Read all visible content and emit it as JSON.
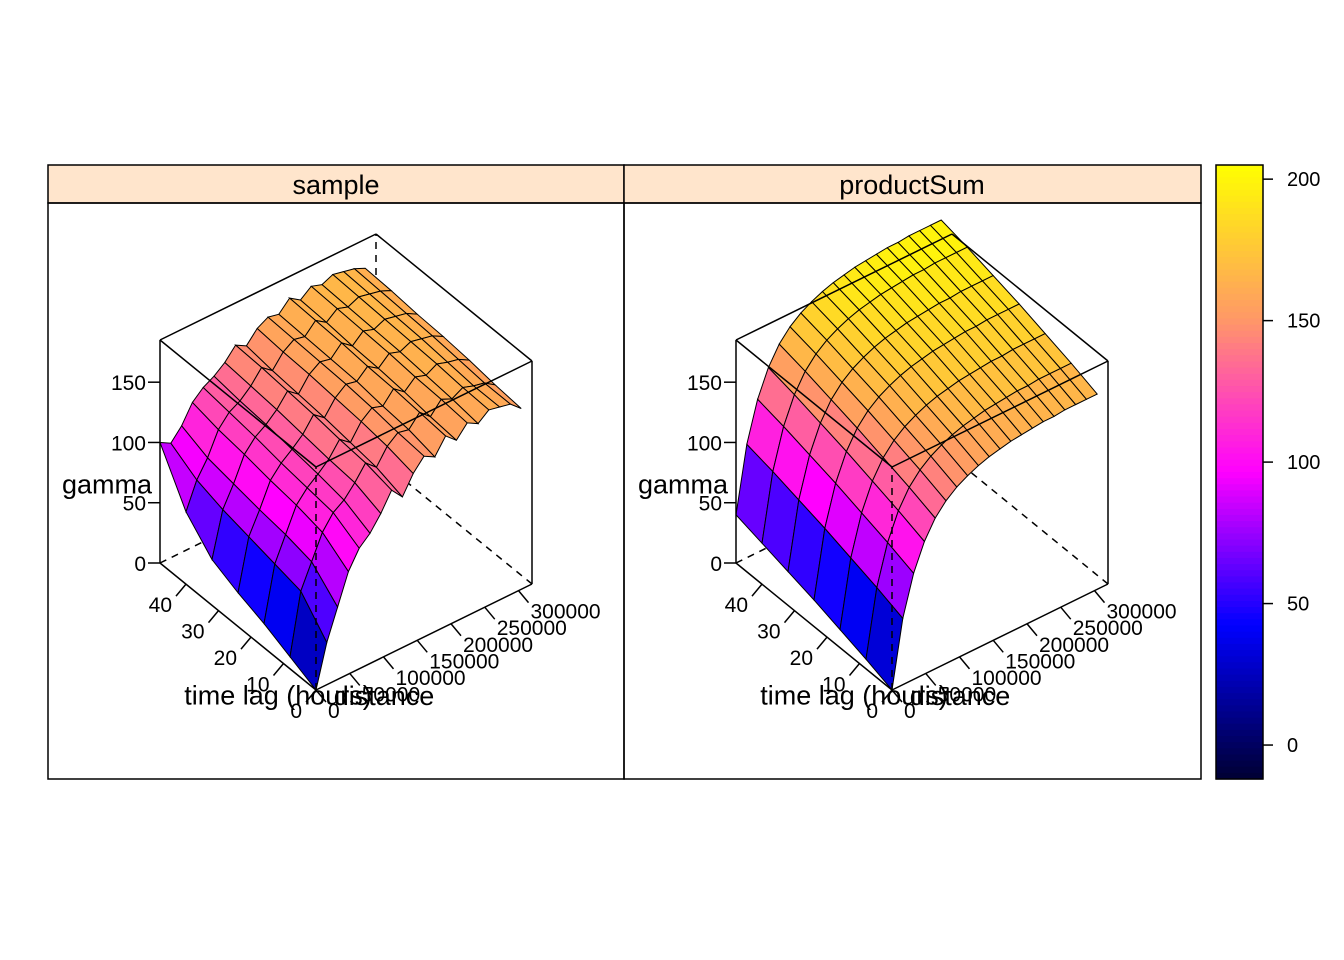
{
  "chart_data": {
    "type": "surface3d",
    "panels": [
      {
        "name": "sample",
        "x_label": "distance",
        "y_label": "time lag (hours)",
        "z_label": "gamma",
        "x_ticks": [
          0,
          50000,
          100000,
          150000,
          200000,
          250000,
          300000
        ],
        "y_ticks": [
          0,
          10,
          20,
          30,
          40
        ],
        "z_ticks": [
          0,
          50,
          100,
          150
        ],
        "x_range": [
          0,
          320000
        ],
        "y_range": [
          0,
          48
        ],
        "z_range": [
          0,
          185
        ],
        "distance_values": [
          0,
          16000,
          32000,
          48000,
          64000,
          80000,
          96000,
          112000,
          128000,
          144000,
          160000,
          176000,
          192000,
          208000,
          224000,
          240000,
          256000,
          272000,
          288000,
          304000
        ],
        "timelag_values": [
          0,
          8,
          16,
          24,
          32,
          40,
          48
        ],
        "gamma": [
          [
            0,
            35,
            60,
            85,
            100,
            108,
            120,
            135,
            125,
            140,
            150,
            145,
            158,
            150,
            160,
            155,
            162,
            160,
            158,
            150
          ],
          [
            10,
            60,
            80,
            100,
            112,
            118,
            128,
            140,
            132,
            145,
            152,
            150,
            160,
            152,
            162,
            158,
            163,
            160,
            158,
            152
          ],
          [
            20,
            65,
            85,
            105,
            115,
            122,
            130,
            142,
            135,
            148,
            155,
            152,
            162,
            155,
            163,
            160,
            165,
            162,
            160,
            155
          ],
          [
            28,
            70,
            88,
            108,
            118,
            125,
            133,
            145,
            138,
            150,
            157,
            155,
            163,
            157,
            165,
            162,
            166,
            164,
            162,
            157
          ],
          [
            38,
            75,
            92,
            112,
            122,
            128,
            136,
            147,
            140,
            152,
            158,
            156,
            165,
            158,
            166,
            163,
            167,
            165,
            163,
            158
          ],
          [
            60,
            82,
            96,
            115,
            125,
            130,
            138,
            149,
            142,
            153,
            159,
            157,
            166,
            160,
            167,
            164,
            168,
            166,
            164,
            160
          ],
          [
            100,
            95,
            105,
            120,
            128,
            133,
            140,
            150,
            145,
            155,
            160,
            158,
            167,
            161,
            168,
            165,
            169,
            167,
            165,
            161
          ]
        ]
      },
      {
        "name": "productSum",
        "x_label": "distance",
        "y_label": "time lag (hours)",
        "z_label": "gamma",
        "x_ticks": [
          0,
          50000,
          100000,
          150000,
          200000,
          250000,
          300000
        ],
        "y_ticks": [
          0,
          10,
          20,
          30,
          40
        ],
        "z_ticks": [
          0,
          50,
          100,
          150
        ],
        "x_range": [
          0,
          320000
        ],
        "y_range": [
          0,
          48
        ],
        "z_range": [
          0,
          185
        ],
        "distance_values": [
          0,
          16000,
          32000,
          48000,
          64000,
          80000,
          96000,
          112000,
          128000,
          144000,
          160000,
          176000,
          192000,
          208000,
          224000,
          240000,
          256000,
          272000,
          288000,
          304000
        ],
        "timelag_values": [
          0,
          8,
          16,
          24,
          32,
          40,
          48
        ],
        "gamma": [
          [
            0,
            55,
            88,
            110,
            125,
            135,
            142,
            147,
            151,
            154,
            156,
            158,
            159,
            160,
            161,
            161,
            162,
            162,
            162,
            162
          ],
          [
            8,
            63,
            96,
            118,
            133,
            143,
            150,
            155,
            159,
            162,
            164,
            166,
            167,
            168,
            169,
            169,
            170,
            170,
            170,
            170
          ],
          [
            15,
            70,
            103,
            125,
            140,
            150,
            157,
            162,
            166,
            169,
            171,
            173,
            174,
            175,
            176,
            176,
            177,
            177,
            177,
            177
          ],
          [
            22,
            77,
            110,
            132,
            147,
            157,
            164,
            169,
            173,
            176,
            178,
            180,
            181,
            182,
            183,
            183,
            184,
            184,
            184,
            184
          ],
          [
            28,
            83,
            116,
            138,
            153,
            163,
            170,
            175,
            179,
            182,
            184,
            186,
            187,
            188,
            189,
            189,
            190,
            190,
            190,
            190
          ],
          [
            34,
            89,
            122,
            144,
            159,
            169,
            176,
            181,
            185,
            188,
            190,
            192,
            193,
            194,
            195,
            195,
            196,
            196,
            196,
            196
          ],
          [
            40,
            94,
            127,
            149,
            164,
            174,
            181,
            186,
            190,
            193,
            195,
            197,
            198,
            199,
            200,
            200,
            201,
            201,
            201,
            201
          ]
        ]
      }
    ],
    "colorkey": {
      "ticks": [
        0,
        50,
        100,
        150,
        200
      ],
      "range": [
        -12,
        205
      ],
      "colormap": [
        "#000033",
        "#0000ff",
        "#ff00ff",
        "#ff9966",
        "#ffff00"
      ]
    }
  }
}
